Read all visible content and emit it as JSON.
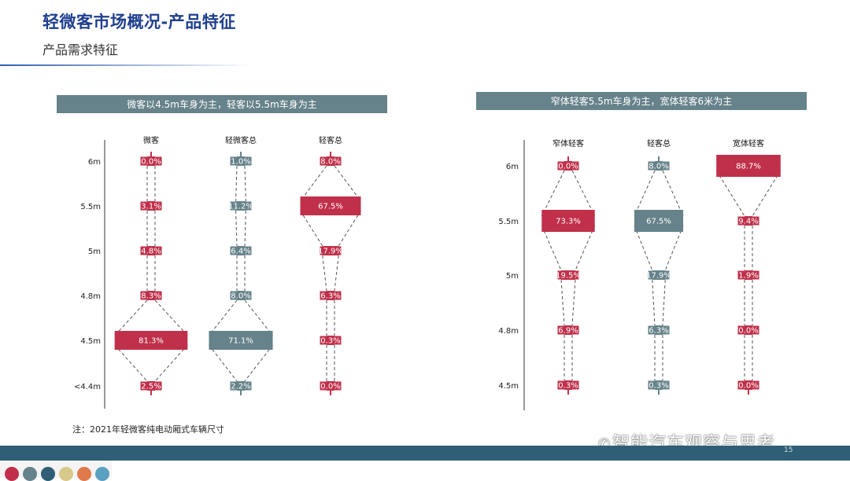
{
  "header": {
    "title": "轻微客市场概况-产品特征",
    "subtitle": "产品需求特征"
  },
  "left_panel": {
    "banner": "微客以4.5m车身为主，轻客以5.5m车身为主"
  },
  "right_panel": {
    "banner": "窄体轻客5.5m车身为主，宽体轻客6米为主"
  },
  "footnote": "注：2021年轻微客纯电动厢式车辆尺寸",
  "watermark": "智能汽车观察与思考",
  "page_number": "15",
  "colors": {
    "red": "#c0304a",
    "gray": "#66828a",
    "footer": "#2f5f76",
    "title": "#1f3f8f"
  },
  "icons": [
    "wechat-icon"
  ],
  "chart_data": [
    {
      "type": "bar",
      "title": "",
      "subtype": "funnel",
      "categories": [
        "6m",
        "5.5m",
        "5m",
        "4.8m",
        "4.5m",
        "<4.4m"
      ],
      "series": [
        {
          "name": "微客",
          "values": [
            0.0,
            3.1,
            4.8,
            8.3,
            81.3,
            2.5
          ],
          "labels": [
            "0.0%",
            "3.1%",
            "4.8%",
            "8.3%",
            "81.3%",
            "2.5%"
          ],
          "color": "red"
        },
        {
          "name": "轻微客总",
          "values": [
            1.0,
            11.2,
            6.4,
            8.0,
            71.1,
            2.2
          ],
          "labels": [
            "1.0%",
            "11.2%",
            "6.4%",
            "8.0%",
            "71.1%",
            "2.2%"
          ],
          "color": "gray"
        },
        {
          "name": "轻客总",
          "values": [
            8.0,
            67.5,
            17.9,
            6.3,
            0.3,
            0.0
          ],
          "labels": [
            "8.0%",
            "67.5%",
            "17.9%",
            "6.3%",
            "0.3%",
            "0.0%"
          ],
          "color": "red"
        }
      ]
    },
    {
      "type": "bar",
      "title": "",
      "subtype": "funnel",
      "categories": [
        "6m",
        "5.5m",
        "5m",
        "4.8m",
        "4.5m"
      ],
      "series": [
        {
          "name": "窄体轻客",
          "values": [
            0.0,
            73.3,
            19.5,
            6.9,
            0.3
          ],
          "labels": [
            "0.0%",
            "73.3%",
            "19.5%",
            "6.9%",
            "0.3%"
          ],
          "color": "red"
        },
        {
          "name": "轻客总",
          "values": [
            8.0,
            67.5,
            17.9,
            6.3,
            0.3
          ],
          "labels": [
            "8.0%",
            "67.5%",
            "17.9%",
            "6.3%",
            "0.3%"
          ],
          "color": "gray"
        },
        {
          "name": "宽体轻客",
          "values": [
            88.7,
            9.4,
            1.9,
            0.0,
            0.0
          ],
          "labels": [
            "88.7%",
            "9.4%",
            "1.9%",
            "0.0%",
            "0.0%"
          ],
          "color": "red"
        }
      ]
    }
  ]
}
